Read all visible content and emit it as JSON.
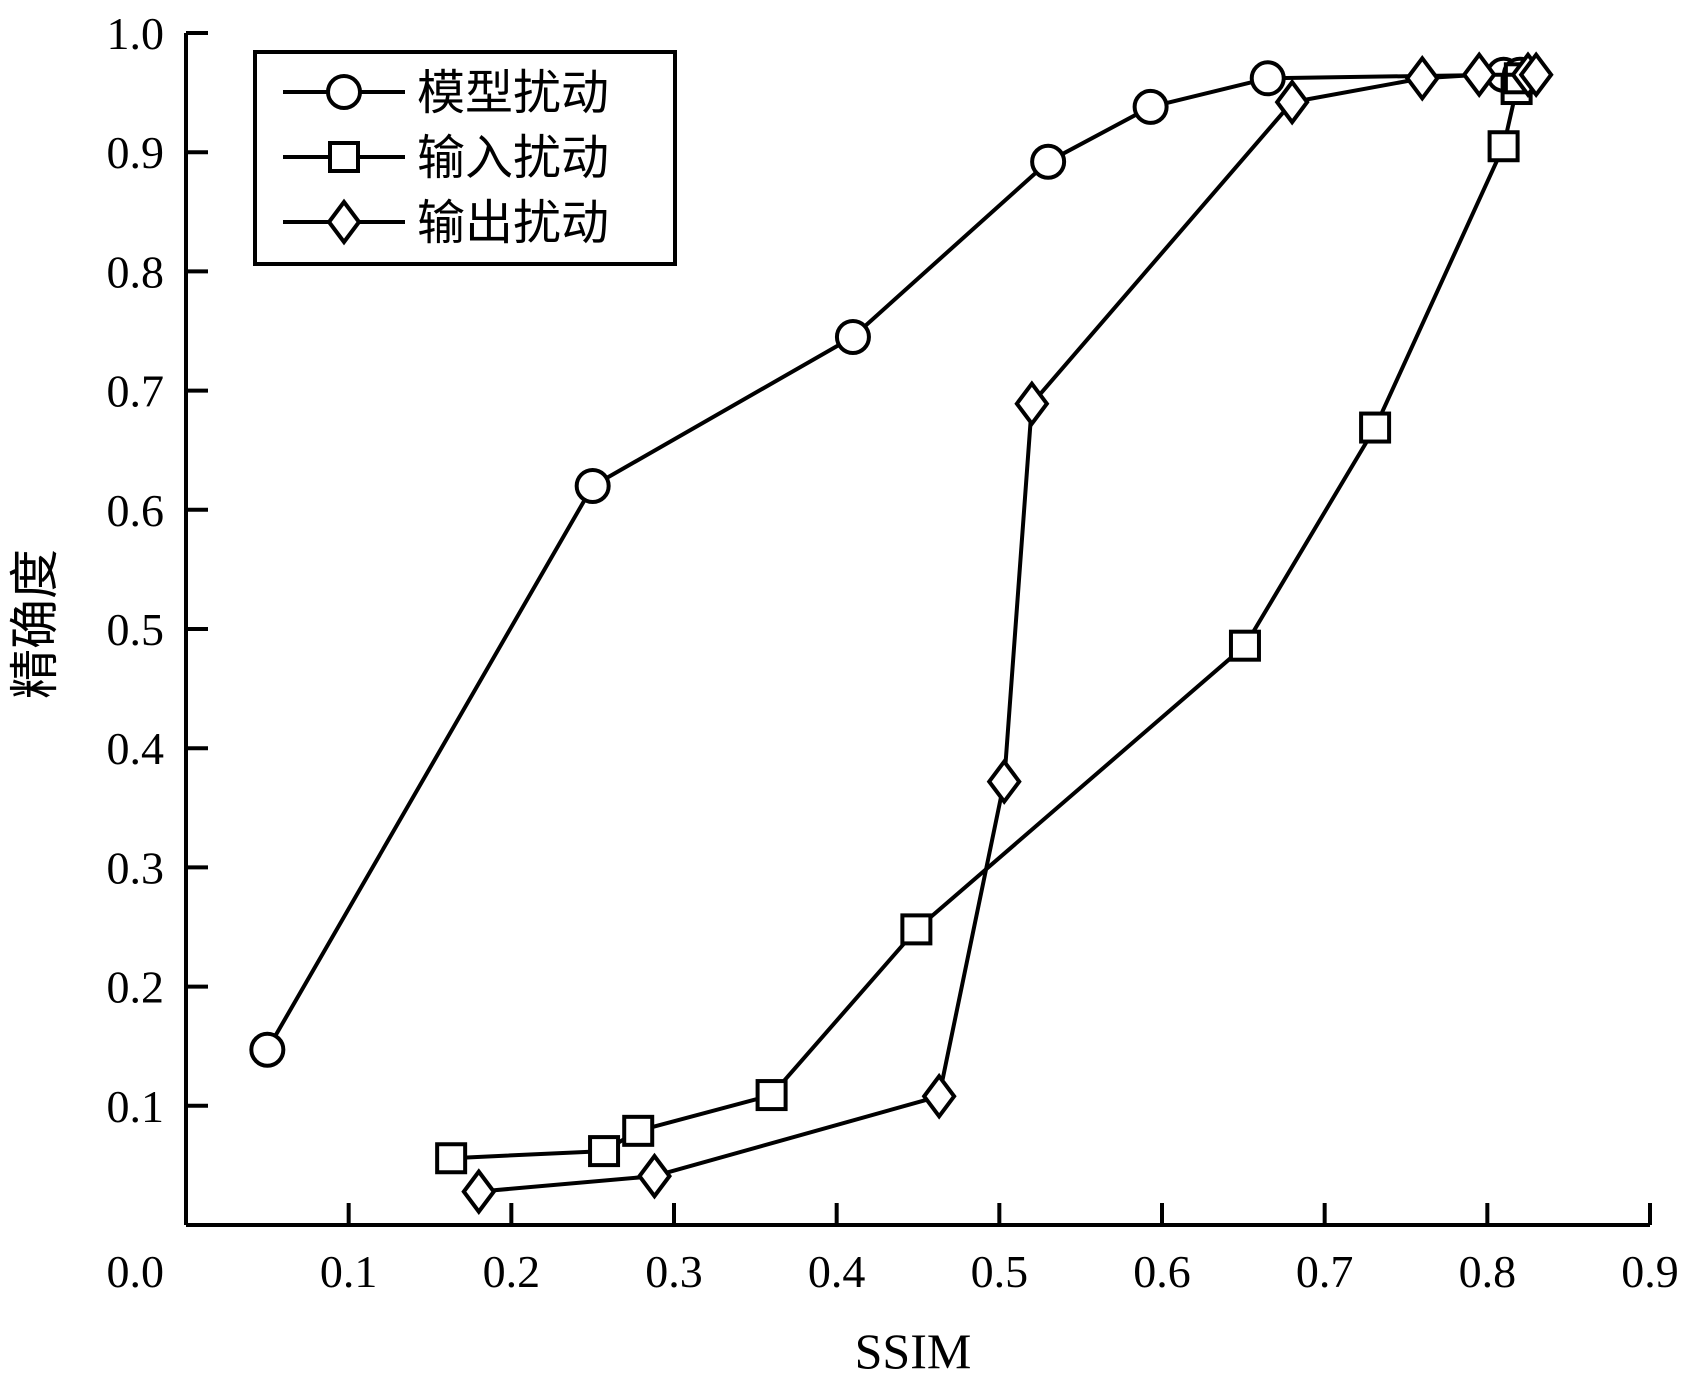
{
  "chart_data": {
    "type": "line",
    "xlabel": "SSIM",
    "ylabel": "精确度",
    "xlim": [
      0.0,
      0.9
    ],
    "ylim": [
      0.0,
      1.0
    ],
    "x_ticks": [
      "0.1",
      "0.2",
      "0.3",
      "0.4",
      "0.5",
      "0.6",
      "0.7",
      "0.8",
      "0.9"
    ],
    "y_ticks": [
      "0.0",
      "0.1",
      "0.2",
      "0.3",
      "0.4",
      "0.5",
      "0.6",
      "0.7",
      "0.8",
      "0.9",
      "1.0"
    ],
    "grid": false,
    "legend_position": "top-left",
    "series": [
      {
        "name": "模型扰动",
        "marker": "circle",
        "points": [
          [
            0.05,
            0.147
          ],
          [
            0.25,
            0.62
          ],
          [
            0.41,
            0.745
          ],
          [
            0.53,
            0.892
          ],
          [
            0.593,
            0.938
          ],
          [
            0.665,
            0.962
          ],
          [
            0.81,
            0.965
          ],
          [
            0.82,
            0.965
          ]
        ]
      },
      {
        "name": "输入扰动",
        "marker": "square",
        "points": [
          [
            0.163,
            0.056
          ],
          [
            0.257,
            0.062
          ],
          [
            0.278,
            0.079
          ],
          [
            0.36,
            0.109
          ],
          [
            0.449,
            0.248
          ],
          [
            0.651,
            0.486
          ],
          [
            0.731,
            0.669
          ],
          [
            0.81,
            0.905
          ],
          [
            0.818,
            0.953
          ],
          [
            0.82,
            0.962
          ]
        ]
      },
      {
        "name": "输出扰动",
        "marker": "diamond",
        "points": [
          [
            0.18,
            0.028
          ],
          [
            0.288,
            0.041
          ],
          [
            0.463,
            0.108
          ],
          [
            0.503,
            0.372
          ],
          [
            0.52,
            0.689
          ],
          [
            0.68,
            0.942
          ],
          [
            0.76,
            0.962
          ],
          [
            0.795,
            0.965
          ],
          [
            0.825,
            0.965
          ],
          [
            0.83,
            0.965
          ]
        ]
      }
    ]
  }
}
